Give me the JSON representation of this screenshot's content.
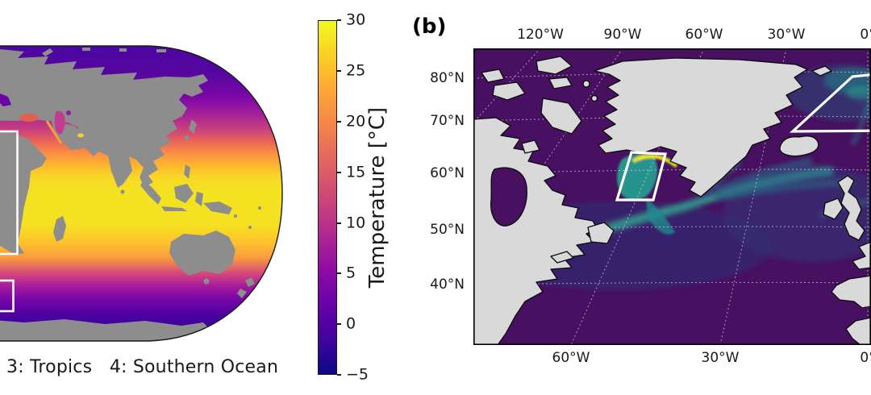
{
  "page": {
    "background": "#ffffff"
  },
  "panel_a": {
    "caption": "3: Tropics   4: Southern Ocean",
    "colormap": "plasma",
    "land_color": "#8d8d8d",
    "projection": "Robinson (left portion cropped by screenshot)"
  },
  "colorbar": {
    "label": "Temperature [°C]",
    "ticks": [
      "30",
      "25",
      "20",
      "15",
      "10",
      "5",
      "0",
      "−5"
    ]
  },
  "panel_b": {
    "label": "(b)",
    "land_color": "#d9d9d9",
    "ocean_color": "#481060",
    "axis": {
      "top": [
        "120°W",
        "90°W",
        "60°W",
        "30°W",
        "0°"
      ],
      "left": [
        "80°N",
        "70°N",
        "60°N",
        "50°N",
        "40°N"
      ],
      "bottom": [
        "60°W",
        "30°W",
        "0°"
      ]
    }
  },
  "chart_data": [
    {
      "type": "heatmap",
      "panel": "a",
      "title": "",
      "description": "Global sea-surface temperature map (Robinson projection, gray land, left half cut off at image edge) with white region boxes over the tropical Atlantic and Southern Ocean",
      "colormap": "plasma",
      "value_label": "Temperature [°C]",
      "value_range": [
        -5,
        30
      ],
      "colorbar_ticks": [
        30,
        25,
        20,
        15,
        10,
        5,
        0,
        -5
      ],
      "colorbar_position": "right",
      "annotations": [
        "3: Tropics",
        "4: Southern Ocean"
      ],
      "region_boxes": [
        {
          "id": "3",
          "name": "Tropics"
        },
        {
          "id": "4",
          "name": "Southern Ocean"
        }
      ]
    },
    {
      "type": "heatmap",
      "panel": "b",
      "title": "",
      "description": "North Atlantic sector map; dark-purple-to-teal-to-yellow (viridis) ocean field, light-gray land, dashed graticule, two white region boxes (Labrador Sea and Nordic Seas, the latter cut at right image edge)",
      "x_ticks_top": [
        "120°W",
        "90°W",
        "60°W",
        "30°W",
        "0°"
      ],
      "x_ticks_bottom": [
        "60°W",
        "30°W",
        "0°"
      ],
      "y_ticks_left": [
        "80°N",
        "70°N",
        "60°N",
        "50°N",
        "40°N"
      ],
      "grid": "dashed graticule",
      "region_box_count": 2
    }
  ]
}
